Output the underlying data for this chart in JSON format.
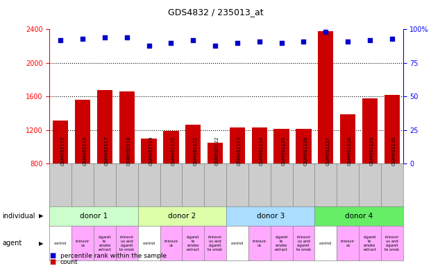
{
  "title": "GDS4832 / 235013_at",
  "samples": [
    "GSM692115",
    "GSM692116",
    "GSM692117",
    "GSM692118",
    "GSM692119",
    "GSM692120",
    "GSM692121",
    "GSM692122",
    "GSM692123",
    "GSM692124",
    "GSM692125",
    "GSM692126",
    "GSM692127",
    "GSM692128",
    "GSM692129",
    "GSM692130"
  ],
  "counts": [
    1310,
    1560,
    1680,
    1660,
    1100,
    1185,
    1260,
    1050,
    1230,
    1230,
    1210,
    1215,
    2380,
    1390,
    1580,
    1620
  ],
  "percentiles": [
    92,
    93,
    94,
    94,
    88,
    90,
    92,
    88,
    90,
    91,
    90,
    91,
    98,
    91,
    92,
    93
  ],
  "ylim_left": [
    800,
    2400
  ],
  "ylim_right": [
    0,
    100
  ],
  "yticks_left": [
    800,
    1200,
    1600,
    2000,
    2400
  ],
  "yticks_right": [
    0,
    25,
    50,
    75,
    100
  ],
  "bar_color": "#cc0000",
  "dot_color": "#0000cc",
  "bg_color": "#ffffff",
  "xtick_bg": "#cccccc",
  "donors": [
    {
      "label": "donor 1",
      "start": 0,
      "end": 4,
      "color": "#ccffcc"
    },
    {
      "label": "donor 2",
      "start": 4,
      "end": 8,
      "color": "#ddffaa"
    },
    {
      "label": "donor 3",
      "start": 8,
      "end": 12,
      "color": "#aaddff"
    },
    {
      "label": "donor 4",
      "start": 12,
      "end": 16,
      "color": "#66ee66"
    }
  ],
  "agent_colors": [
    "#ffffff",
    "#ffaaff",
    "#ffaaff",
    "#ffaaff",
    "#ffffff",
    "#ffaaff",
    "#ffaaff",
    "#ffaaff",
    "#ffffff",
    "#ffaaff",
    "#ffaaff",
    "#ffaaff",
    "#ffffff",
    "#ffaaff",
    "#ffaaff",
    "#ffaaff"
  ],
  "agent_labels": [
    "control",
    "rhinovir\nus",
    "cigaret\nte\nsmoke\nextract",
    "rhinovir\nus and\ncigaret\nte smok",
    "control",
    "rhinovir\nus",
    "cigaret\nte\nsmoke\nextract",
    "rhinovir\nus and\ncigaret\nte smok",
    "control",
    "rhinovir\nus",
    "cigaret\nte\nsmoke\nextract",
    "rhinovir\nus and\ncigaret\nte smok",
    "control",
    "rhinovir\nus",
    "cigaret\nte\nsmoke\nextract",
    "rhinovir\nus and\ncigaret\nte smok"
  ]
}
